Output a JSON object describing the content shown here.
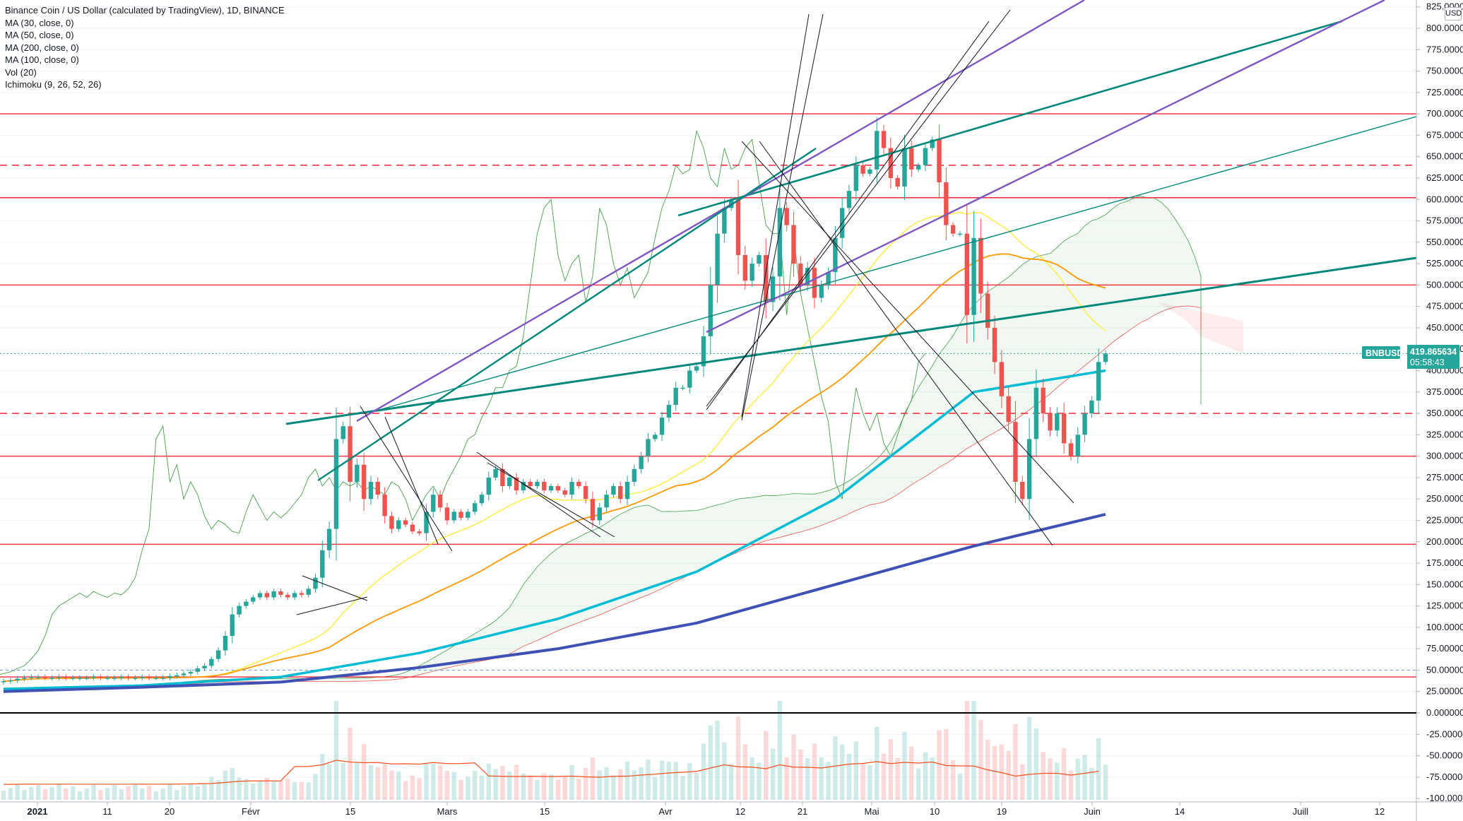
{
  "legend": {
    "title": "Binance Coin / US Dollar (calculated by TradingView), 1D, BINANCE",
    "indicators": [
      "MA (30, close, 0)",
      "MA (50, close, 0)",
      "MA (200, close, 0)",
      "MA (100, close, 0)",
      "Vol (20)",
      "Ichimoku (9, 26, 52, 26)"
    ]
  },
  "currency_label": "USD",
  "price_tag": {
    "symbol": "BNBUSD",
    "price": "419.865634",
    "countdown": "05:58:43"
  },
  "colors": {
    "up": "#26a69a",
    "down": "#ef5350",
    "ma30": "#ffeb3b",
    "ma50": "#ff9800",
    "ma100": "#00bcd4",
    "ma200": "#3f51b5",
    "kumo_line_a": "#43a047",
    "kumo_line_b": "#ef5350",
    "chikou": "#43a047",
    "trend_teal": "#00897b",
    "trend_purple": "#7e57c2",
    "hline": "#f23645"
  },
  "chart_data": {
    "type": "candlestick",
    "title": "Binance Coin / US Dollar (calculated by TradingView), 1D, BINANCE",
    "y_axis_ticks": [
      "825.000000",
      "800.000000",
      "775.000000",
      "750.000000",
      "725.000000",
      "700.000000",
      "675.000000",
      "650.000000",
      "625.000000",
      "600.000000",
      "575.000000",
      "550.000000",
      "525.000000",
      "500.000000",
      "475.000000",
      "450.000000",
      "425.000000",
      "400.000000",
      "375.000000",
      "350.000000",
      "325.000000",
      "300.000000",
      "275.000000",
      "250.000000",
      "225.000000",
      "200.000000",
      "175.000000",
      "150.000000",
      "125.000000",
      "100.000000",
      "75.000000",
      "50.000000",
      "25.000000",
      "0.000000",
      "-25.000000",
      "-50.000000",
      "-75.000000",
      "-100.000000"
    ],
    "x_axis_ticks": [
      "2021",
      "11",
      "20",
      "Févr",
      "15",
      "Mars",
      "15",
      "Avr",
      "12",
      "21",
      "Mai",
      "10",
      "19",
      "Juin",
      "14",
      "Juill",
      "12"
    ],
    "ylim": [
      -100,
      825
    ],
    "horizontal_levels": [
      {
        "price": 700,
        "style": "solid"
      },
      {
        "price": 640,
        "style": "dashed"
      },
      {
        "price": 602,
        "style": "solid"
      },
      {
        "price": 500,
        "style": "solid"
      },
      {
        "price": 350,
        "style": "dashed"
      },
      {
        "price": 300,
        "style": "solid"
      },
      {
        "price": 197,
        "style": "solid"
      },
      {
        "price": 42,
        "style": "solid"
      }
    ],
    "closes": [
      37,
      38,
      40,
      41,
      42,
      42,
      41,
      41,
      42,
      41,
      41,
      41,
      41,
      42,
      41,
      41,
      41,
      42,
      41,
      41,
      42,
      41,
      41,
      41,
      43,
      44,
      46,
      48,
      52,
      55,
      63,
      73,
      90,
      115,
      125,
      130,
      135,
      140,
      135,
      142,
      138,
      135,
      140,
      138,
      145,
      158,
      190,
      215,
      320,
      335,
      270,
      290,
      250,
      270,
      255,
      230,
      215,
      225,
      220,
      212,
      210,
      235,
      255,
      240,
      225,
      235,
      228,
      235,
      245,
      255,
      275,
      285,
      265,
      275,
      260,
      270,
      265,
      270,
      260,
      265,
      260,
      255,
      270,
      265,
      250,
      225,
      240,
      255,
      265,
      250,
      270,
      285,
      300,
      320,
      325,
      345,
      360,
      380,
      380,
      400,
      405,
      440,
      500,
      560,
      590,
      600,
      535,
      505,
      525,
      535,
      480,
      510,
      590,
      570,
      525,
      500,
      520,
      485,
      500,
      515,
      555,
      590,
      610,
      640,
      630,
      635,
      680,
      660,
      625,
      615,
      660,
      635,
      640,
      660,
      670,
      620,
      570,
      560,
      560,
      465,
      555,
      490,
      450,
      410,
      370,
      340,
      270,
      250,
      320,
      380,
      350,
      330,
      350,
      315,
      300,
      325,
      350,
      365,
      410,
      420
    ],
    "ma200_series": [
      {
        "x": 0,
        "y": 25
      },
      {
        "x": 20,
        "y": 30
      },
      {
        "x": 40,
        "y": 36
      },
      {
        "x": 60,
        "y": 53
      },
      {
        "x": 80,
        "y": 75
      },
      {
        "x": 100,
        "y": 105
      },
      {
        "x": 120,
        "y": 150
      },
      {
        "x": 140,
        "y": 195
      },
      {
        "x": 159,
        "y": 232
      }
    ],
    "ma100_series": [
      {
        "x": 0,
        "y": 28
      },
      {
        "x": 20,
        "y": 32
      },
      {
        "x": 40,
        "y": 42
      },
      {
        "x": 60,
        "y": 70
      },
      {
        "x": 80,
        "y": 110
      },
      {
        "x": 100,
        "y": 165
      },
      {
        "x": 120,
        "y": 250
      },
      {
        "x": 140,
        "y": 375
      },
      {
        "x": 159,
        "y": 400
      }
    ]
  }
}
